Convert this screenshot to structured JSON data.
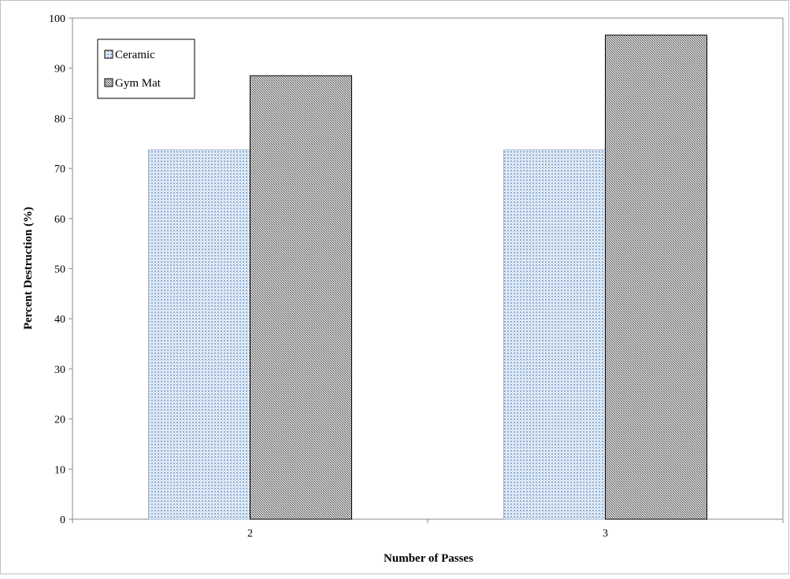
{
  "chart_data": {
    "type": "bar",
    "title": "",
    "xlabel": "Number of Passes",
    "ylabel": "Percent Destruction (%)",
    "categories": [
      "2",
      "3"
    ],
    "ylim": [
      0,
      100
    ],
    "yticks": [
      0,
      10,
      20,
      30,
      40,
      50,
      60,
      70,
      80,
      90,
      100
    ],
    "grid": false,
    "legend_position": "top-left",
    "series": [
      {
        "name": "Ceramic",
        "values": [
          73.7,
          73.7
        ],
        "pattern": "dotted-light-blue"
      },
      {
        "name": "Gym Mat",
        "values": [
          88.5,
          96.6
        ],
        "pattern": "dense-gray"
      }
    ]
  },
  "colors": {
    "ceramic_fill": "#cfdcec",
    "ceramic_dot": "#7f9fc4",
    "gymmat_fill": "#bdbdbd",
    "gymmat_dot": "#4a4a4a",
    "axis": "#888888",
    "bar_outline": "#000000"
  }
}
